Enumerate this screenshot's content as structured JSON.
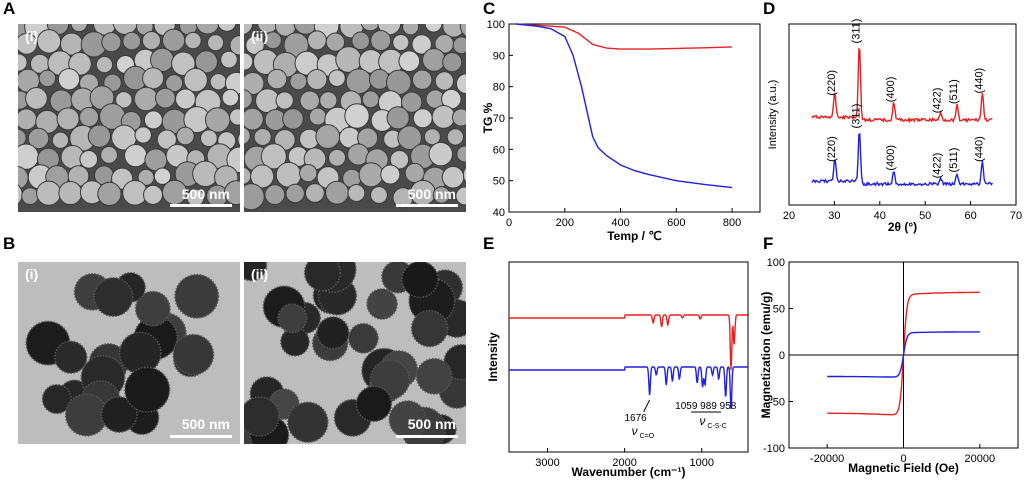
{
  "panels": {
    "A": {
      "letter": "A",
      "sub": [
        "(i)",
        "(ii)"
      ],
      "scale": "500 nm"
    },
    "B": {
      "letter": "B",
      "sub": [
        "(i)",
        "(ii)"
      ],
      "scale": "500 nm"
    },
    "C": {
      "letter": "C"
    },
    "D": {
      "letter": "D"
    },
    "E": {
      "letter": "E"
    },
    "F": {
      "letter": "F"
    }
  },
  "chart_data": [
    {
      "id": "C",
      "type": "line",
      "xlabel": "Temp / ℃",
      "ylabel": "TG %",
      "xlim": [
        0,
        900
      ],
      "ylim": [
        40,
        100
      ],
      "xticks": [
        "0",
        "200",
        "400",
        "600",
        "800"
      ],
      "yticks": [
        "40",
        "50",
        "60",
        "70",
        "80",
        "90",
        "100"
      ],
      "series": [
        {
          "color": "#e8201f",
          "x": [
            25,
            100,
            200,
            250,
            300,
            350,
            400,
            500,
            600,
            700,
            800
          ],
          "y": [
            100,
            99.6,
            99,
            97,
            93.5,
            92.3,
            92,
            92,
            92.2,
            92.4,
            92.7
          ]
        },
        {
          "color": "#1f1fe8",
          "x": [
            25,
            100,
            150,
            200,
            230,
            260,
            280,
            300,
            320,
            350,
            400,
            450,
            500,
            600,
            700,
            800
          ],
          "y": [
            100,
            99.3,
            98.5,
            96,
            90,
            80,
            72,
            64,
            60.5,
            58,
            55,
            53.2,
            52,
            50,
            48.8,
            47.8
          ]
        }
      ]
    },
    {
      "id": "D",
      "type": "line",
      "xlabel": "2θ (°)",
      "ylabel": "Intensity (a.u.)",
      "xlim": [
        20,
        70
      ],
      "xticks": [
        "20",
        "30",
        "40",
        "50",
        "60",
        "70"
      ],
      "peaks": [
        {
          "label": "(220)",
          "x": 30.1
        },
        {
          "label": "(311)",
          "x": 35.5
        },
        {
          "label": "(400)",
          "x": 43.1
        },
        {
          "label": "(422)",
          "x": 53.4
        },
        {
          "label": "(511)",
          "x": 57.0
        },
        {
          "label": "(440)",
          "x": 62.6
        }
      ],
      "series": [
        {
          "color": "#e8201f",
          "peak_heights": [
            0.22,
            0.7,
            0.16,
            0.06,
            0.14,
            0.24
          ]
        },
        {
          "color": "#1f1fe8",
          "peak_heights": [
            0.2,
            0.5,
            0.12,
            0.05,
            0.1,
            0.2
          ]
        }
      ]
    },
    {
      "id": "E",
      "type": "line",
      "xlabel": "Wavenumber (cm⁻¹)",
      "ylabel": "Intensity",
      "xlim": [
        3500,
        400
      ],
      "xticks": [
        "3000",
        "2000",
        "1000"
      ],
      "annotations": [
        {
          "text": "1676",
          "sub": "ν",
          "subscript": "C=O"
        },
        {
          "text": "1059 989 958",
          "sub": "ν",
          "subscript": "C-S-C"
        }
      ],
      "series": [
        {
          "color": "#e8201f",
          "dips": [
            [
              1630,
              0.08
            ],
            [
              1520,
              0.12
            ],
            [
              1440,
              0.1
            ],
            [
              1250,
              0.03
            ],
            [
              1020,
              0.04
            ],
            [
              620,
              0.55
            ],
            [
              580,
              0.3
            ]
          ]
        },
        {
          "color": "#1f1fe8",
          "dips": [
            [
              1676,
              0.28
            ],
            [
              1590,
              0.08
            ],
            [
              1460,
              0.18
            ],
            [
              1380,
              0.14
            ],
            [
              1290,
              0.12
            ],
            [
              1059,
              0.16
            ],
            [
              989,
              0.2
            ],
            [
              958,
              0.18
            ],
            [
              860,
              0.08
            ],
            [
              780,
              0.12
            ],
            [
              690,
              0.3
            ],
            [
              620,
              0.42
            ]
          ]
        }
      ]
    },
    {
      "id": "F",
      "type": "line",
      "xlabel": "Magnetic Field (Oe)",
      "ylabel": "Magnetization (emu/g)",
      "xlim": [
        -30000,
        30000
      ],
      "ylim": [
        -100,
        100
      ],
      "xticks": [
        "-20000",
        "0",
        "20000"
      ],
      "yticks": [
        "-100",
        "-50",
        "0",
        "50",
        "100"
      ],
      "series": [
        {
          "color": "#e8201f",
          "ms": 65
        },
        {
          "color": "#1f1fe8",
          "ms": 24
        }
      ]
    }
  ]
}
